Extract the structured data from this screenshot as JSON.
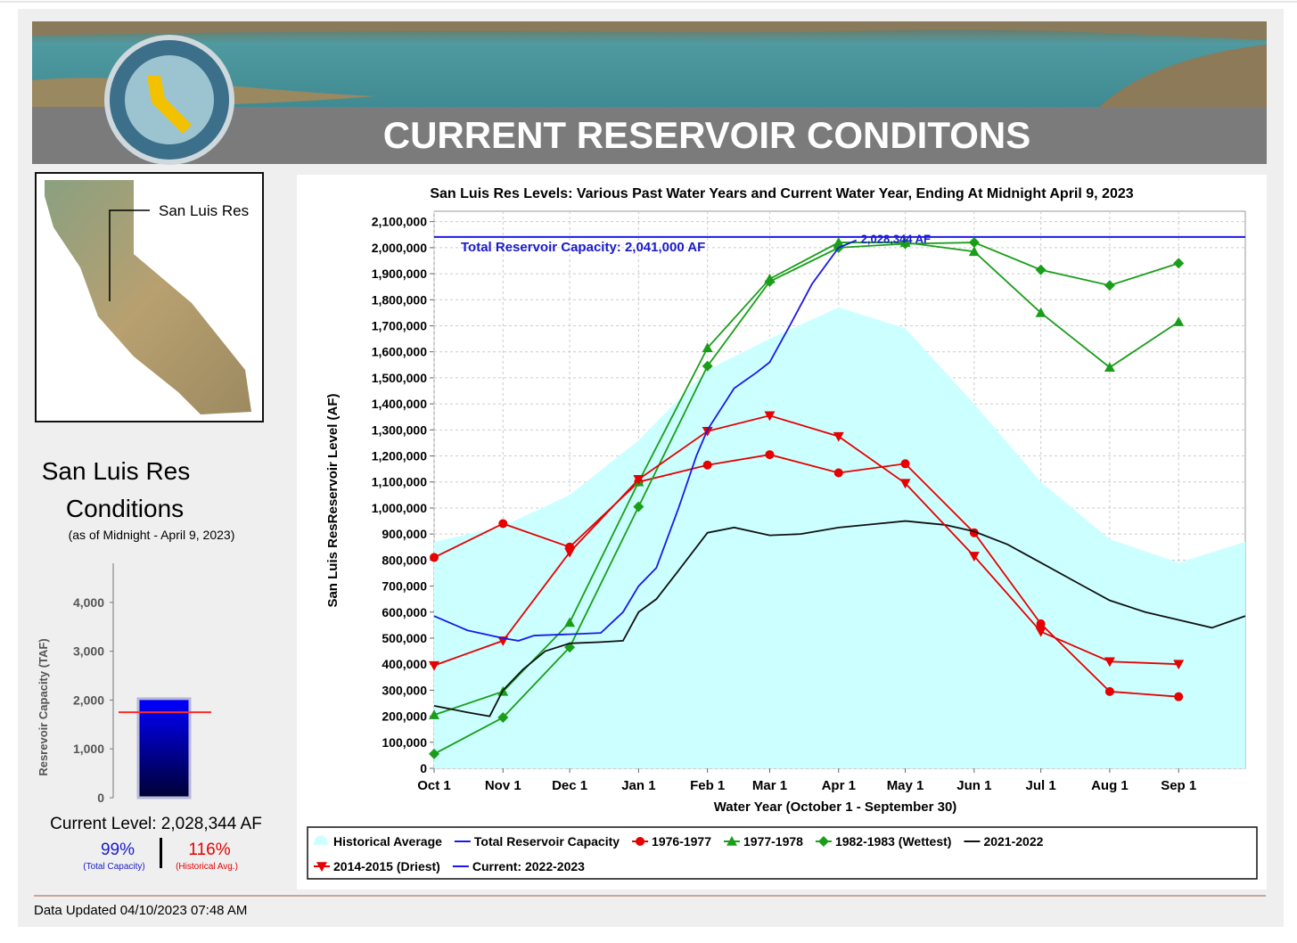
{
  "header": {
    "title": "CURRENT RESERVOIR CONDITONS"
  },
  "map": {
    "label": "San Luis Res"
  },
  "conditions": {
    "title_line1": "San Luis Res",
    "title_line2": "Conditions",
    "as_of": "(as of Midnight - April 9, 2023)",
    "current_level": "Current Level: 2,028,344 AF",
    "pct_capacity": "99%",
    "pct_capacity_label": "(Total Capacity)",
    "pct_historical": "116%",
    "pct_historical_label": "(Historical Avg.)"
  },
  "footer": {
    "updated": "Data Updated 04/10/2023 07:48 AM"
  },
  "chart_data": [
    {
      "type": "line",
      "title": "San Luis Res Levels: Various Past Water Years and Current Water Year, Ending At Midnight April 9, 2023",
      "x_label": "Water Year (October 1 - September 30)",
      "y_label": "San Luis ResReservoir Level (AF)",
      "annotations": [
        "Total Reservoir Capacity: 2,041,000 AF",
        "2,028,344 AF"
      ],
      "xlim": [
        0,
        365
      ],
      "ylim": [
        0,
        2140000
      ],
      "grid": true,
      "xticks": [
        {
          "value": 0,
          "label": "Oct 1"
        },
        {
          "value": 31,
          "label": "Nov 1"
        },
        {
          "value": 61,
          "label": "Dec 1"
        },
        {
          "value": 92,
          "label": "Jan 1"
        },
        {
          "value": 123,
          "label": "Feb 1"
        },
        {
          "value": 151,
          "label": "Mar 1"
        },
        {
          "value": 182,
          "label": "Apr 1"
        },
        {
          "value": 212,
          "label": "May 1"
        },
        {
          "value": 243,
          "label": "Jun 1"
        },
        {
          "value": 273,
          "label": "Jul 1"
        },
        {
          "value": 304,
          "label": "Aug 1"
        },
        {
          "value": 335,
          "label": "Sep 1"
        }
      ],
      "yticks": [
        0,
        {
          "value": 100000,
          "label": "100,000"
        },
        {
          "value": 200000,
          "label": "200,000"
        },
        {
          "value": 300000,
          "label": "300,000"
        },
        {
          "value": 400000,
          "label": "400,000"
        },
        {
          "value": 500000,
          "label": "500,000"
        },
        {
          "value": 600000,
          "label": "600,000"
        },
        {
          "value": 700000,
          "label": "700,000"
        },
        {
          "value": 800000,
          "label": "800,000"
        },
        {
          "value": 900000,
          "label": "900,000"
        },
        {
          "value": 1000000,
          "label": "1,000,000"
        },
        {
          "value": 1100000,
          "label": "1,100,000"
        },
        {
          "value": 1200000,
          "label": "1,200,000"
        },
        {
          "value": 1300000,
          "label": "1,300,000"
        },
        {
          "value": 1400000,
          "label": "1,400,000"
        },
        {
          "value": 1500000,
          "label": "1,500,000"
        },
        {
          "value": 1600000,
          "label": "1,600,000"
        },
        {
          "value": 1700000,
          "label": "1,700,000"
        },
        {
          "value": 1800000,
          "label": "1,800,000"
        },
        {
          "value": 1900000,
          "label": "1,900,000"
        },
        {
          "value": 2000000,
          "label": "2,000,000"
        },
        {
          "value": 2100000,
          "label": "2,100,000"
        }
      ],
      "series": [
        {
          "name": "Historical Average",
          "color": "#ccffff",
          "kind": "area",
          "x": [
            0,
            31,
            61,
            92,
            123,
            151,
            182,
            212,
            243,
            273,
            304,
            335,
            365
          ],
          "values": [
            870000,
            930000,
            1050000,
            1260000,
            1530000,
            1650000,
            1770000,
            1690000,
            1400000,
            1100000,
            880000,
            790000,
            870000
          ]
        },
        {
          "name": "Total Reservoir Capacity",
          "color": "#1a1ae6",
          "kind": "line",
          "x": [
            0,
            365
          ],
          "values": [
            2041000,
            2041000
          ]
        },
        {
          "name": "1976-1977",
          "color": "#e60000",
          "kind": "line",
          "marker": "circle",
          "x": [
            0,
            31,
            61,
            92,
            123,
            151,
            182,
            212,
            243,
            273,
            304,
            335
          ],
          "values": [
            810000,
            940000,
            850000,
            1100000,
            1165000,
            1205000,
            1135000,
            1170000,
            905000,
            555000,
            295000,
            275000
          ]
        },
        {
          "name": "1977-1978",
          "color": "#1a9e1a",
          "kind": "line",
          "marker": "triangle",
          "x": [
            0,
            31,
            61,
            92,
            123,
            151,
            182,
            212,
            243,
            273,
            304,
            335
          ],
          "values": [
            205000,
            295000,
            560000,
            1100000,
            1615000,
            1880000,
            2020000,
            2020000,
            1985000,
            1750000,
            1540000,
            1715000
          ]
        },
        {
          "name": "1982-1983 (Wettest)",
          "color": "#1a9e1a",
          "kind": "line",
          "marker": "diamond",
          "x": [
            0,
            31,
            61,
            92,
            123,
            151,
            182,
            212,
            243,
            273,
            304,
            335
          ],
          "values": [
            55000,
            195000,
            465000,
            1005000,
            1545000,
            1870000,
            2000000,
            2015000,
            2020000,
            1915000,
            1855000,
            1940000
          ]
        },
        {
          "name": "2021-2022",
          "color": "#111111",
          "kind": "line",
          "x": [
            0,
            15,
            25,
            31,
            40,
            50,
            61,
            75,
            85,
            92,
            100,
            110,
            123,
            135,
            151,
            165,
            182,
            200,
            212,
            230,
            243,
            258,
            273,
            290,
            304,
            320,
            335,
            350,
            365
          ],
          "values": [
            240000,
            215000,
            200000,
            300000,
            380000,
            450000,
            480000,
            485000,
            490000,
            600000,
            650000,
            760000,
            905000,
            925000,
            895000,
            900000,
            925000,
            940000,
            950000,
            935000,
            910000,
            860000,
            790000,
            710000,
            645000,
            600000,
            570000,
            540000,
            585000
          ]
        },
        {
          "name": "2014-2015 (Driest)",
          "color": "#e60000",
          "kind": "line",
          "marker": "triangle-down",
          "x": [
            0,
            31,
            61,
            92,
            123,
            151,
            182,
            212,
            243,
            273,
            304,
            335
          ],
          "values": [
            395000,
            490000,
            830000,
            1110000,
            1295000,
            1355000,
            1275000,
            1095000,
            815000,
            525000,
            410000,
            400000
          ]
        },
        {
          "name": "Current: 2022-2023",
          "color": "#1a1ae6",
          "kind": "line",
          "x": [
            0,
            15,
            31,
            38,
            45,
            61,
            75,
            80,
            85,
            92,
            100,
            110,
            118,
            123,
            135,
            145,
            151,
            160,
            170,
            182,
            190
          ],
          "values": [
            585000,
            530000,
            500000,
            490000,
            510000,
            515000,
            520000,
            560000,
            600000,
            700000,
            770000,
            1000000,
            1200000,
            1300000,
            1460000,
            1520000,
            1560000,
            1700000,
            1860000,
            2000000,
            2028344
          ]
        }
      ]
    },
    {
      "type": "bar",
      "y_label": "Resrevoir Capacity (TAF)",
      "ylim": [
        0,
        4800
      ],
      "yticks": [
        0,
        {
          "value": 1000,
          "label": "1,000"
        },
        {
          "value": 2000,
          "label": "2,000"
        },
        {
          "value": 3000,
          "label": "3,000"
        },
        {
          "value": 4000,
          "label": "4,000"
        }
      ],
      "values": [
        2028
      ],
      "color": "#0000e0",
      "historical_average": 1750,
      "historical_color": "#ff2a2a"
    }
  ]
}
